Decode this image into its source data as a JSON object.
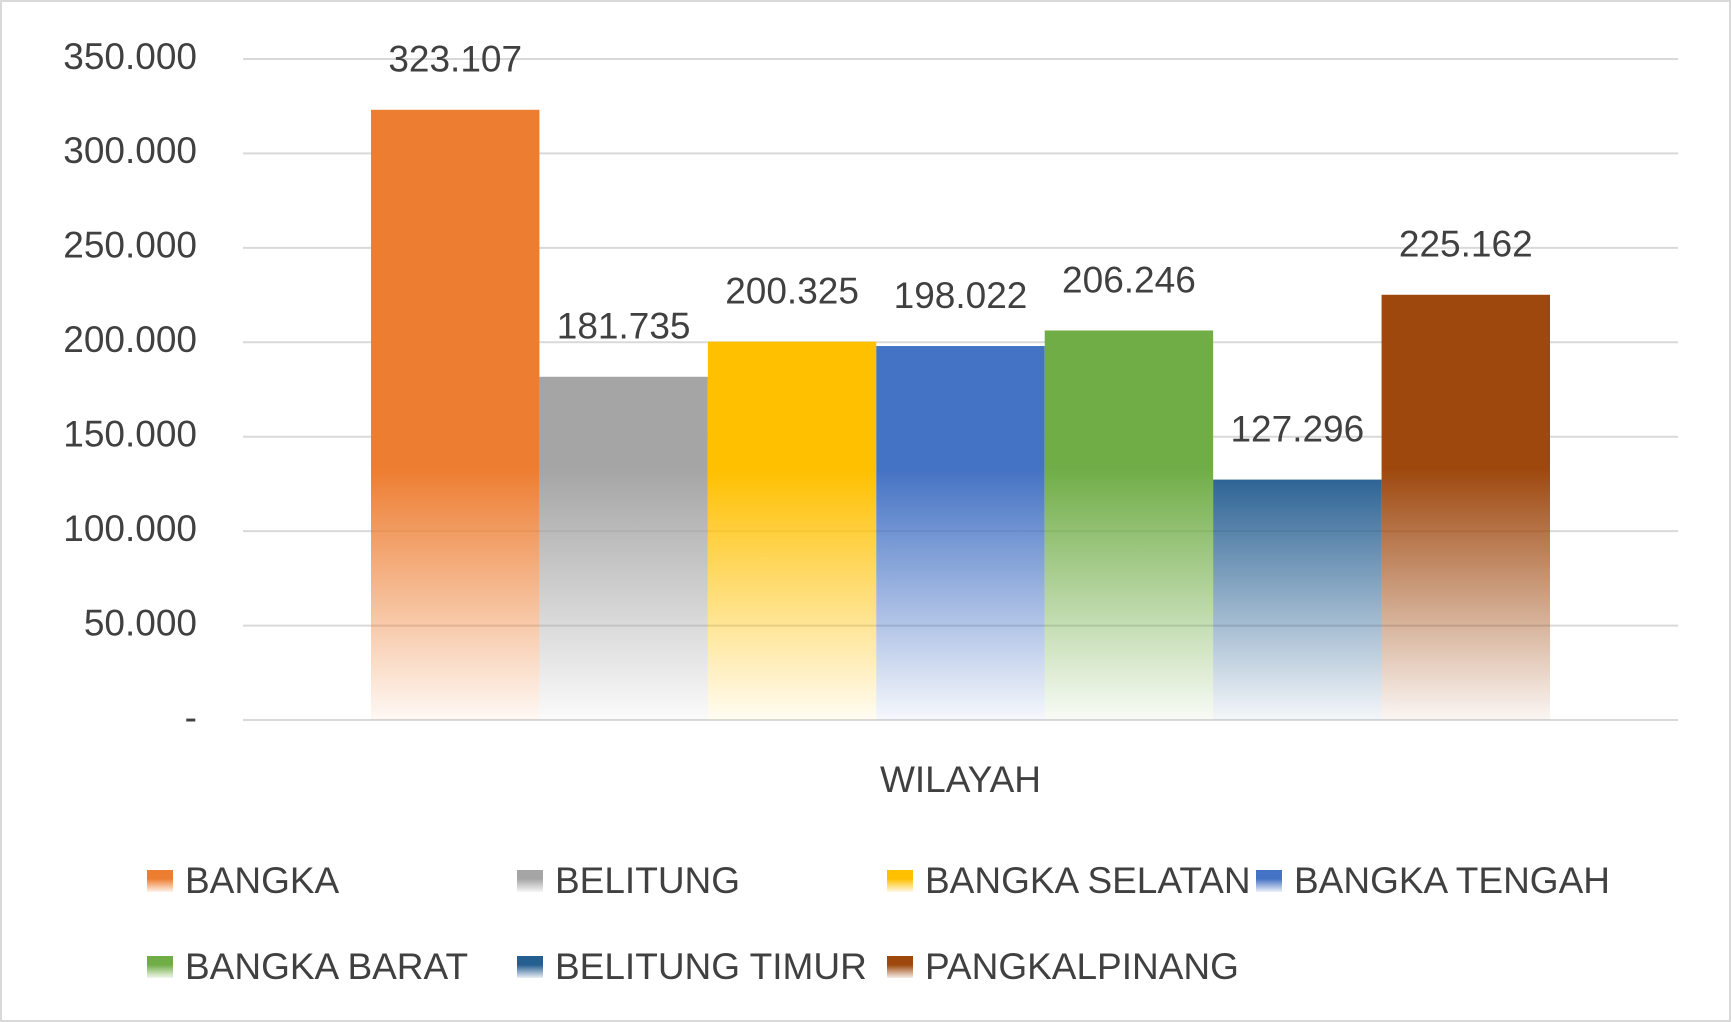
{
  "chart_data": {
    "type": "bar",
    "categories": [
      "WILAYAH"
    ],
    "series": [
      {
        "name": "BANGKA",
        "color": "#ED7D31",
        "values": [
          323107
        ],
        "value_labels": [
          "323.107"
        ]
      },
      {
        "name": "BELITUNG",
        "color": "#A5A5A5",
        "values": [
          181735
        ],
        "value_labels": [
          "181.735"
        ]
      },
      {
        "name": "BANGKA SELATAN",
        "color": "#FFC000",
        "values": [
          200325
        ],
        "value_labels": [
          "200.325"
        ]
      },
      {
        "name": "BANGKA TENGAH",
        "color": "#4472C4",
        "values": [
          198022
        ],
        "value_labels": [
          "198.022"
        ]
      },
      {
        "name": "BANGKA BARAT",
        "color": "#70AD47",
        "values": [
          206246
        ],
        "value_labels": [
          "206.246"
        ]
      },
      {
        "name": "BELITUNG TIMUR",
        "color": "#255E91",
        "values": [
          127296
        ],
        "value_labels": [
          "127.296"
        ]
      },
      {
        "name": "PANGKALPINANG",
        "color": "#9E480E",
        "values": [
          225162
        ],
        "value_labels": [
          "225.162"
        ]
      }
    ],
    "ylim": [
      0,
      350000
    ],
    "yticks": [
      {
        "value": 0,
        "label": "-"
      },
      {
        "value": 50000,
        "label": "50.000"
      },
      {
        "value": 100000,
        "label": "100.000"
      },
      {
        "value": 150000,
        "label": "150.000"
      },
      {
        "value": 200000,
        "label": "200.000"
      },
      {
        "value": 250000,
        "label": "250.000"
      },
      {
        "value": 300000,
        "label": "300.000"
      },
      {
        "value": 350000,
        "label": "350.000"
      }
    ],
    "grid": true,
    "legend": "bottom"
  }
}
